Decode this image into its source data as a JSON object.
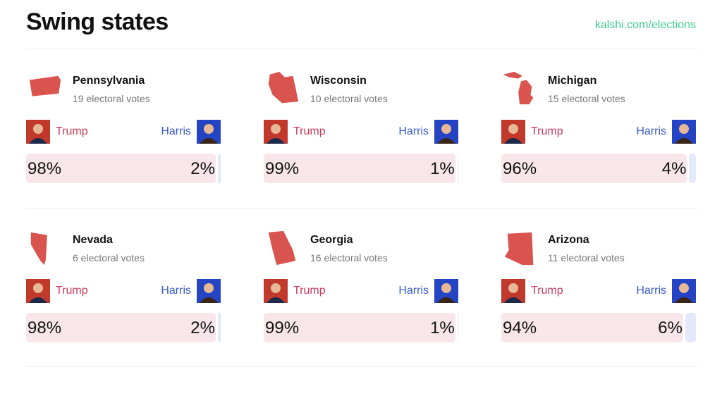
{
  "header": {
    "title": "Swing states",
    "link": "kalshi.com/elections"
  },
  "states": [
    {
      "name": "Pennsylvania",
      "votes": "19 electoral votes",
      "candidates": [
        {
          "name": "Trump",
          "value": 98,
          "label": "98%"
        },
        {
          "name": "Harris",
          "value": 2,
          "label": "2%"
        }
      ]
    },
    {
      "name": "Wisconsin",
      "votes": "10 electoral votes",
      "candidates": [
        {
          "name": "Trump",
          "value": 99,
          "label": "99%"
        },
        {
          "name": "Harris",
          "value": 1,
          "label": "1%"
        }
      ]
    },
    {
      "name": "Michigan",
      "votes": "15 electoral votes",
      "candidates": [
        {
          "name": "Trump",
          "value": 96,
          "label": "96%"
        },
        {
          "name": "Harris",
          "value": 4,
          "label": "4%"
        }
      ]
    },
    {
      "name": "Nevada",
      "votes": "6 electoral votes",
      "candidates": [
        {
          "name": "Trump",
          "value": 98,
          "label": "98%"
        },
        {
          "name": "Harris",
          "value": 2,
          "label": "2%"
        }
      ]
    },
    {
      "name": "Georgia",
      "votes": "16 electoral votes",
      "candidates": [
        {
          "name": "Trump",
          "value": 99,
          "label": "99%"
        },
        {
          "name": "Harris",
          "value": 1,
          "label": "1%"
        }
      ]
    },
    {
      "name": "Arizona",
      "votes": "11 electoral votes",
      "candidates": [
        {
          "name": "Trump",
          "value": 94,
          "label": "94%"
        },
        {
          "name": "Harris",
          "value": 6,
          "label": "6%"
        }
      ]
    }
  ]
}
